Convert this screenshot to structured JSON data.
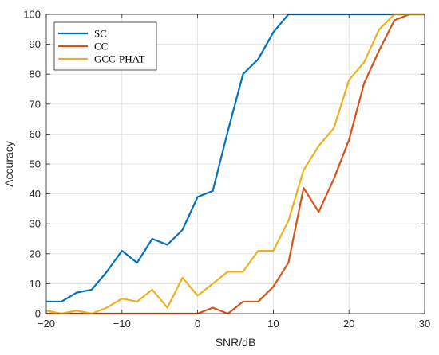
{
  "chart_data": {
    "type": "line",
    "xlabel": "SNR/dB",
    "ylabel": "Accuracy",
    "xlim": [
      -20,
      30
    ],
    "ylim": [
      0,
      100
    ],
    "xticks": [
      -20,
      -10,
      0,
      10,
      20,
      30
    ],
    "yticks": [
      0,
      10,
      20,
      30,
      40,
      50,
      60,
      70,
      80,
      90,
      100
    ],
    "grid": true,
    "legend_position": "top-left",
    "series": [
      {
        "name": "SC",
        "color": "#0072BD",
        "x": [
          -20,
          -18,
          -16,
          -14,
          -12,
          -10,
          -8,
          -6,
          -4,
          -2,
          0,
          2,
          4,
          6,
          8,
          10,
          12,
          14,
          16,
          18,
          20,
          22,
          24,
          26,
          28,
          30
        ],
        "y": [
          4,
          4,
          7,
          8,
          14,
          21,
          17,
          25,
          23,
          28,
          39,
          41,
          61,
          80,
          85,
          94,
          100,
          100,
          100,
          100,
          100,
          100,
          100,
          100,
          100,
          100
        ]
      },
      {
        "name": "CC",
        "color": "#D95319",
        "x": [
          -20,
          -18,
          -16,
          -14,
          -12,
          -10,
          -8,
          -6,
          -4,
          -2,
          0,
          2,
          4,
          6,
          8,
          10,
          12,
          14,
          16,
          18,
          20,
          22,
          24,
          26,
          28,
          30
        ],
        "y": [
          0,
          0,
          0,
          0,
          0,
          0,
          0,
          0,
          0,
          0,
          0,
          2,
          0,
          4,
          4,
          9,
          17,
          42,
          34,
          45,
          58,
          77,
          88,
          98,
          100,
          100
        ]
      },
      {
        "name": "GCC-PHAT",
        "color": "#EDB120",
        "x": [
          -20,
          -18,
          -16,
          -14,
          -12,
          -10,
          -8,
          -6,
          -4,
          -2,
          0,
          2,
          4,
          6,
          8,
          10,
          12,
          14,
          16,
          18,
          20,
          22,
          24,
          26,
          28,
          30
        ],
        "y": [
          1,
          0,
          1,
          0,
          2,
          5,
          4,
          8,
          2,
          12,
          6,
          10,
          14,
          14,
          21,
          21,
          31,
          48,
          56,
          62,
          78,
          84,
          95,
          100,
          100,
          100
        ]
      }
    ]
  }
}
